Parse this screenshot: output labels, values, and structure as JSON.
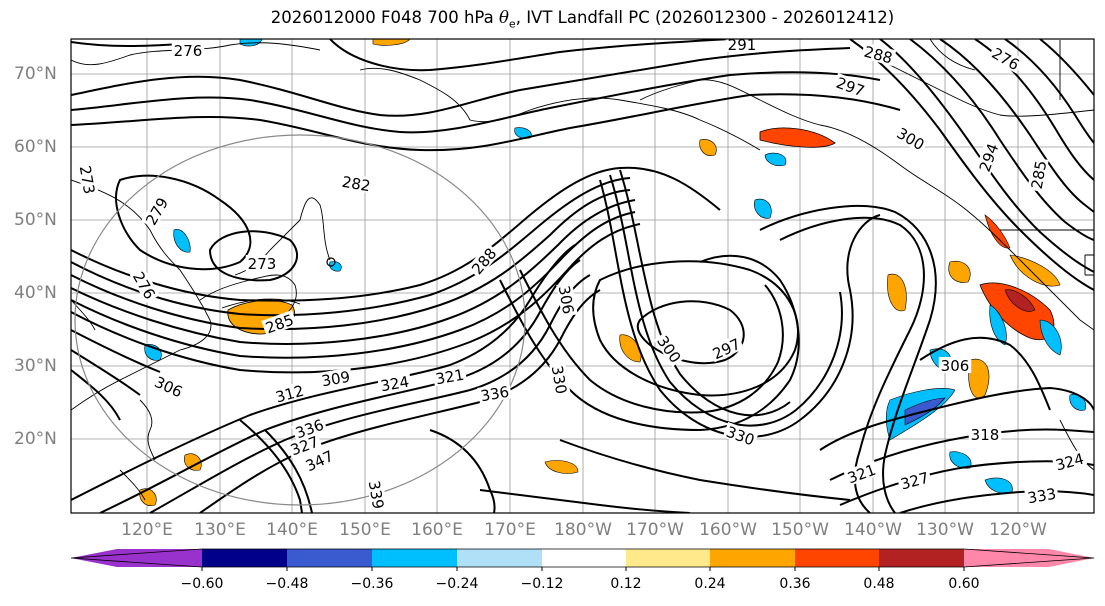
{
  "title": {
    "prefix": "2026012000 F048 700 hPa ",
    "theta": "θ",
    "theta_sub": "e",
    "suffix": ", IVT Landfall PC (2026012300 - 2026012412)"
  },
  "axes": {
    "lat_labels": [
      "70°N",
      "60°N",
      "50°N",
      "40°N",
      "30°N",
      "20°N"
    ],
    "lon_labels": [
      "120°E",
      "130°E",
      "140°E",
      "150°E",
      "160°E",
      "170°E",
      "180°W",
      "170°W",
      "160°W",
      "150°W",
      "140°W",
      "130°W",
      "120°W"
    ]
  },
  "contour_labels": [
    "276",
    "291",
    "288",
    "276",
    "282",
    "297",
    "300",
    "294",
    "273",
    "285",
    "279",
    "273",
    "306",
    "288",
    "276",
    "285",
    "297",
    "300",
    "306",
    "330",
    "306",
    "336",
    "321",
    "324",
    "309",
    "312",
    "336",
    "327",
    "330",
    "318",
    "327",
    "321",
    "324",
    "333",
    "339",
    "347"
  ],
  "colorbar": {
    "tick_labels": [
      "−0.60",
      "−0.48",
      "−0.36",
      "−0.24",
      "−0.12",
      "0.12",
      "0.24",
      "0.36",
      "0.48",
      "0.60"
    ],
    "colors": [
      "#9932cc",
      "#00008b",
      "#3a5bd0",
      "#00bfff",
      "#b0e0f8",
      "#ffffff",
      "#ffe98a",
      "#ffa500",
      "#ff4500",
      "#b22222",
      "#ff88aa"
    ]
  }
}
